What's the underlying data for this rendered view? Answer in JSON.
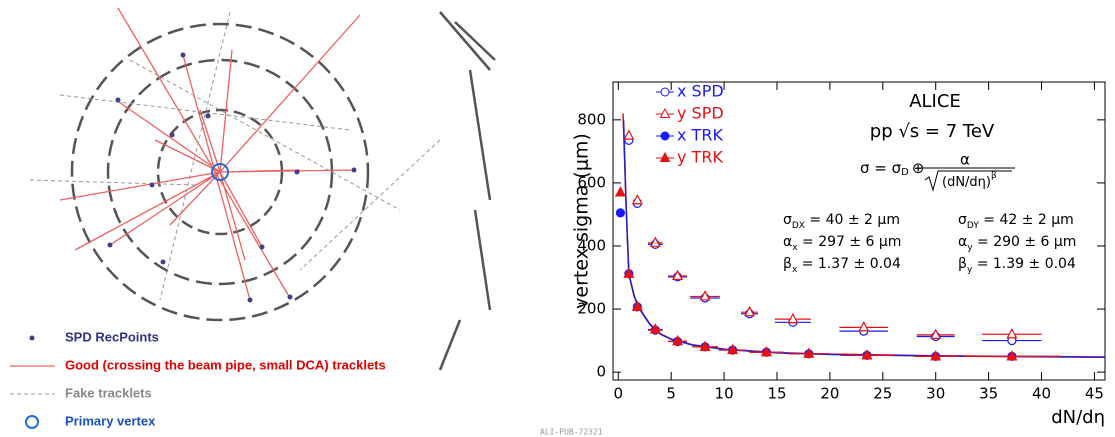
{
  "diagram": {
    "legend": [
      "SPD RecPoints",
      "Good (crossing the beam pipe, small DCA) tracklets",
      "Fake tracklets",
      "Primary vertex"
    ]
  },
  "chart_data": {
    "type": "scatter",
    "x_label": "dN/dη",
    "y_label": "vertex sigma (μm)",
    "footer": "ALI-PUB-72321",
    "annotations": {
      "experiment": "ALICE",
      "system": "pp √s = 7 TeV",
      "formula": {
        "lhs": "σ = σ",
        "sub": "D",
        "op": "⊕",
        "num": "α",
        "den": "(dN/dη)",
        "sup": "β"
      },
      "params": [
        {
          "sym": "σ",
          "sub": "DX",
          "rest": " = 40 ± 2 μm"
        },
        {
          "sym": "α",
          "sub": "x",
          "rest": " = 297 ± 6 μm"
        },
        {
          "sym": "β",
          "sub": "x",
          "rest": " = 1.37 ± 0.04"
        },
        {
          "sym": "σ",
          "sub": "DY",
          "rest": " = 42 ± 2 μm"
        },
        {
          "sym": "α",
          "sub": "y",
          "rest": " = 290 ± 6 μm"
        },
        {
          "sym": "β",
          "sub": "y",
          "rest": " = 1.39 ± 0.04"
        }
      ]
    },
    "xlim": [
      -0.5,
      46
    ],
    "ylim": [
      -25,
      920
    ],
    "xticks": [
      0,
      5,
      10,
      15,
      20,
      25,
      30,
      35,
      40,
      45
    ],
    "yticks": [
      0,
      200,
      400,
      600,
      800
    ],
    "series": [
      {
        "name": "x SPD",
        "color": "#1a1aff",
        "marker": "circle",
        "filled": false,
        "x": [
          1,
          1.8,
          3.5,
          5.6,
          8.2,
          12.4,
          16.5,
          23.2,
          30,
          37.2
        ],
        "values": [
          735,
          535,
          405,
          302,
          235,
          185,
          158,
          130,
          113,
          100
        ],
        "xerr": [
          0.3,
          0.4,
          0.7,
          0.9,
          1.4,
          0.8,
          1.7,
          2.3,
          1.8,
          2.8
        ]
      },
      {
        "name": "y SPD",
        "color": "#e81010",
        "marker": "triangle",
        "filled": false,
        "x": [
          1,
          1.8,
          3.5,
          5.6,
          8.2,
          12.4,
          16.5,
          23.2,
          30,
          37.2
        ],
        "values": [
          750,
          545,
          410,
          305,
          240,
          190,
          168,
          142,
          118,
          120
        ],
        "xerr": [
          0.3,
          0.4,
          0.7,
          0.9,
          1.4,
          0.8,
          1.7,
          2.3,
          1.8,
          2.8
        ]
      },
      {
        "name": "x TRK",
        "color": "#1a1aff",
        "marker": "circle",
        "filled": true,
        "x": [
          0.2,
          1,
          1.8,
          3.5,
          5.6,
          8.2,
          10.8,
          14,
          18,
          23.5,
          30,
          37.2
        ],
        "values": [
          505,
          312,
          207,
          133,
          97,
          80,
          70,
          63,
          58,
          53,
          50,
          50
        ],
        "xerr": [
          0.2,
          0.3,
          0.4,
          0.7,
          0.9,
          1.2,
          1.3,
          1.6,
          2,
          2.5,
          2,
          4.6
        ]
      },
      {
        "name": "y TRK",
        "color": "#e81010",
        "marker": "triangle",
        "filled": true,
        "x": [
          0.2,
          1,
          1.8,
          3.5,
          5.6,
          8.2,
          10.8,
          14,
          18,
          23.5,
          30,
          37.2
        ],
        "values": [
          570,
          312,
          207,
          135,
          98,
          80,
          70,
          63,
          58,
          53,
          50,
          50
        ],
        "xerr": [
          0.2,
          0.3,
          0.4,
          0.7,
          0.9,
          1.2,
          1.3,
          1.6,
          2,
          2.5,
          2,
          4.6
        ]
      }
    ],
    "curves": [
      {
        "color": "#e81010",
        "x": [
          0.45,
          0.75,
          1,
          1.5,
          2,
          3,
          4,
          5,
          7,
          10,
          15,
          20,
          30,
          46
        ],
        "values": [
          820,
          520,
          312,
          242,
          202,
          152,
          121,
          105,
          87,
          73,
          62,
          57,
          52,
          48
        ]
      },
      {
        "color": "#2020d0",
        "x": [
          0.5,
          0.75,
          1,
          1.5,
          2,
          3,
          4,
          5,
          7,
          10,
          15,
          20,
          30,
          46
        ],
        "values": [
          800,
          515,
          310,
          240,
          200,
          150,
          120,
          104,
          86,
          72,
          61,
          56,
          51,
          47
        ]
      }
    ]
  }
}
